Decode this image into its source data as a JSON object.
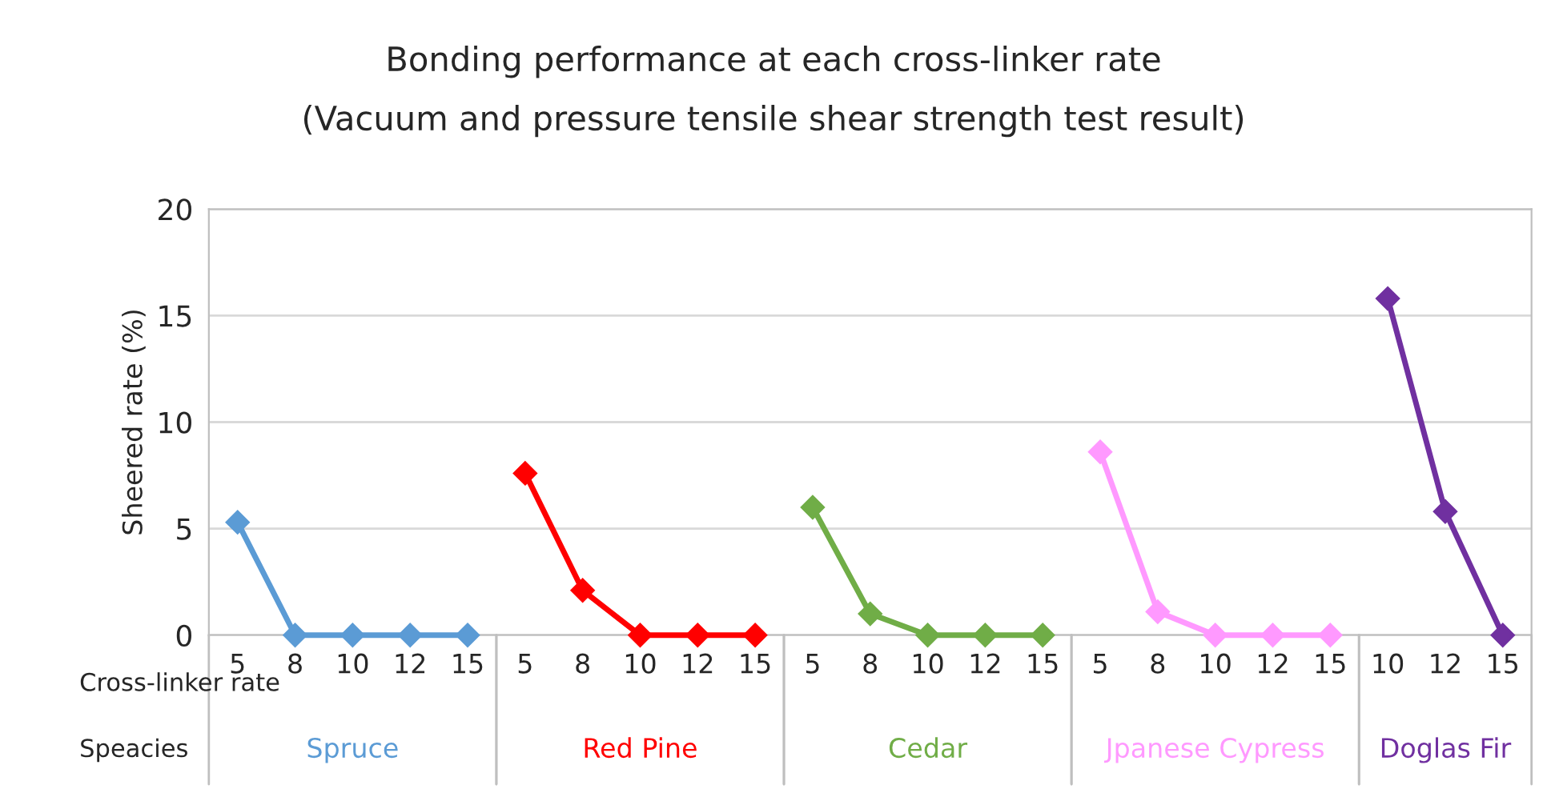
{
  "chart_data": {
    "type": "line",
    "title": "Bonding performance at each cross-linker rate",
    "subtitle": "(Vacuum and pressure tensile shear strength test result)",
    "ylabel": "Sheered rate (%)",
    "categories": [
      "5",
      "8",
      "10",
      "12",
      "15",
      "5",
      "8",
      "10",
      "12",
      "15",
      "5",
      "8",
      "10",
      "12",
      "15",
      "5",
      "8",
      "10",
      "12",
      "15",
      "10",
      "12",
      "15"
    ],
    "series": [
      {
        "name": "Spruce",
        "color": "#5b9bd5",
        "values": [
          5.3,
          0,
          0,
          0,
          0,
          null,
          null,
          null,
          null,
          null,
          null,
          null,
          null,
          null,
          null,
          null,
          null,
          null,
          null,
          null,
          null,
          null,
          null
        ]
      },
      {
        "name": "Red Pine",
        "color": "#ff0000",
        "values": [
          null,
          null,
          null,
          null,
          null,
          7.6,
          2.1,
          0,
          0,
          0,
          null,
          null,
          null,
          null,
          null,
          null,
          null,
          null,
          null,
          null,
          null,
          null,
          null
        ]
      },
      {
        "name": "Cedar",
        "color": "#70ad47",
        "values": [
          null,
          null,
          null,
          null,
          null,
          null,
          null,
          null,
          null,
          null,
          6.0,
          1.0,
          0,
          0,
          0,
          null,
          null,
          null,
          null,
          null,
          null,
          null,
          null
        ]
      },
      {
        "name": "Jpanese Cypress",
        "color": "#ff99ff",
        "values": [
          null,
          null,
          null,
          null,
          null,
          null,
          null,
          null,
          null,
          null,
          null,
          null,
          null,
          null,
          null,
          8.6,
          1.1,
          0,
          0,
          0,
          null,
          null,
          null
        ]
      },
      {
        "name": "Doglas Fir",
        "color": "#7030a0",
        "values": [
          null,
          null,
          null,
          null,
          null,
          null,
          null,
          null,
          null,
          null,
          null,
          null,
          null,
          null,
          null,
          null,
          null,
          null,
          null,
          null,
          15.8,
          5.8,
          0
        ]
      }
    ],
    "annotations": [
      "Cross-linker rate",
      "Speacies"
    ],
    "ylim": [
      0,
      20
    ],
    "yticks": [
      0,
      5,
      10,
      15,
      20
    ],
    "grid": "y",
    "marker": "diamond",
    "line_style": "solid",
    "legend": false
  }
}
